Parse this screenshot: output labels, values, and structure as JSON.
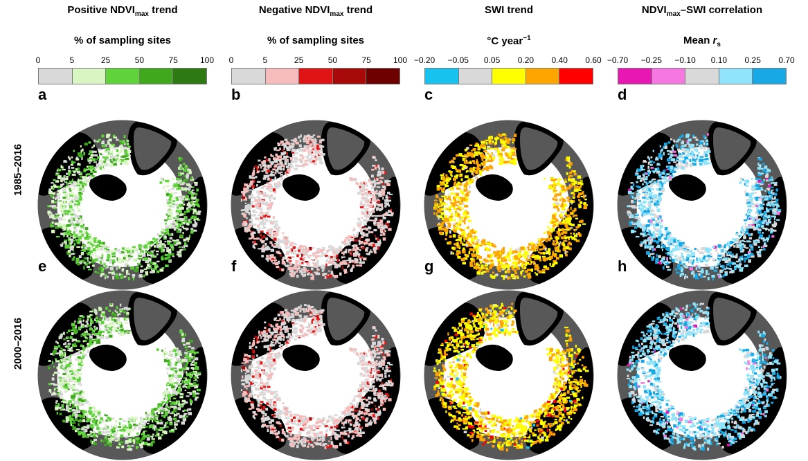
{
  "columns": [
    {
      "title_main": "Positive NDVI",
      "title_sub": "max",
      "title_tail": " trend",
      "subtitle_main": "% of sampling sites",
      "subtitle_sup": "",
      "ticks": [
        "0",
        "5",
        "25",
        "50",
        "75",
        "100"
      ],
      "colors": [
        "#d9d9d9",
        "#d9f5c2",
        "#5ed43a",
        "#3fa81c",
        "#2e7a12"
      ],
      "panels": [
        "a",
        "e"
      ]
    },
    {
      "title_main": "Negative NDVI",
      "title_sub": "max",
      "title_tail": " trend",
      "subtitle_main": "% of sampling sites",
      "subtitle_sup": "",
      "ticks": [
        "0",
        "5",
        "25",
        "50",
        "75",
        "100"
      ],
      "colors": [
        "#d9d9d9",
        "#f6bcbc",
        "#e01414",
        "#a80a0a",
        "#6e0000"
      ],
      "panels": [
        "b",
        "f"
      ]
    },
    {
      "title_main": "SWI trend",
      "title_sub": "",
      "title_tail": "",
      "subtitle_main": "°C year",
      "subtitle_sup": "−1",
      "ticks": [
        "−0.20",
        "−0.05",
        "0.05",
        "0.20",
        "0.40",
        "0.60"
      ],
      "colors": [
        "#17c3ee",
        "#d9d9d9",
        "#ffff00",
        "#ffa500",
        "#ff0000"
      ],
      "panels": [
        "c",
        "g"
      ]
    },
    {
      "title_main": "NDVI",
      "title_sub": "max",
      "title_tail": "–SWI correlation",
      "subtitle_main": "Mean r",
      "subtitle_sup": "",
      "subtitle_subscript": "s",
      "ticks": [
        "−0.70",
        "−0.25",
        "−0.10",
        "0.10",
        "0.25",
        "0.70"
      ],
      "colors": [
        "#e817b4",
        "#f777e0",
        "#d9d9d9",
        "#8fe4fb",
        "#17a9e6"
      ],
      "panels": [
        "d",
        "h"
      ]
    }
  ],
  "rows": [
    "1985–2016",
    "2000–2016"
  ],
  "map_colors": {
    "ocean": "#ffffff",
    "outside_domain": "#585858",
    "non_tundra_land": "#000000"
  }
}
